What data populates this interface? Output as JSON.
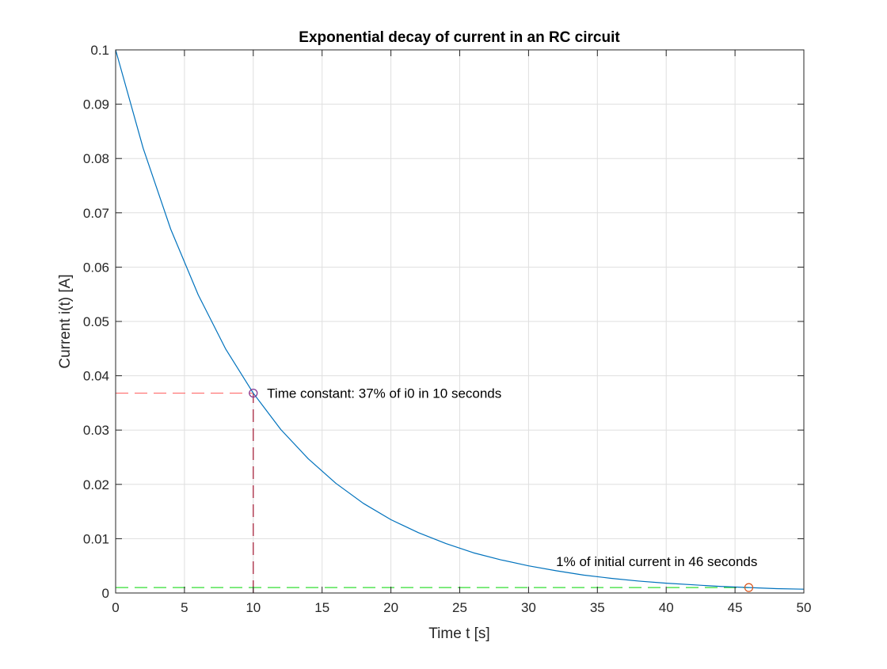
{
  "chart_data": {
    "type": "line",
    "title": "Exponential decay of current in an RC circuit",
    "xlabel": "Time t [s]",
    "ylabel": "Current i(t) [A]",
    "xlim": [
      0,
      50
    ],
    "ylim": [
      0,
      0.1
    ],
    "grid": true,
    "x_ticks": [
      0,
      5,
      10,
      15,
      20,
      25,
      30,
      35,
      40,
      45,
      50
    ],
    "y_ticks": [
      0,
      0.01,
      0.02,
      0.03,
      0.04,
      0.05,
      0.06,
      0.07,
      0.08,
      0.09,
      0.1
    ],
    "x_tick_labels": [
      "0",
      "5",
      "10",
      "15",
      "20",
      "25",
      "30",
      "35",
      "40",
      "45",
      "50"
    ],
    "y_tick_labels": [
      "0",
      "0.01",
      "0.02",
      "0.03",
      "0.04",
      "0.05",
      "0.06",
      "0.07",
      "0.08",
      "0.09",
      "0.1"
    ],
    "series": [
      {
        "color": "#0072BD",
        "x": [
          0,
          2,
          4,
          6,
          8,
          10,
          12,
          14,
          16,
          18,
          20,
          22,
          24,
          26,
          28,
          30,
          32,
          34,
          36,
          38,
          40,
          42,
          44,
          46,
          48,
          50
        ],
        "y": [
          0.1,
          0.0819,
          0.067,
          0.0549,
          0.0449,
          0.0368,
          0.0301,
          0.0247,
          0.0202,
          0.0165,
          0.0135,
          0.0111,
          0.0091,
          0.0074,
          0.0061,
          0.005,
          0.0041,
          0.0033,
          0.0027,
          0.0022,
          0.0018,
          0.0015,
          0.0012,
          0.001,
          0.0008,
          0.0007
        ]
      }
    ],
    "markers": [
      {
        "x": 10,
        "y": 0.0368,
        "color": "#7E2F8E",
        "shape": "circle"
      },
      {
        "x": 46,
        "y": 0.001,
        "color": "#D95319",
        "shape": "circle"
      }
    ],
    "reference_lines": [
      {
        "kind": "horizontal",
        "y": 0.0368,
        "x_from": 0,
        "x_to": 10,
        "color": "#FF6B6B",
        "style": "dashed"
      },
      {
        "kind": "vertical",
        "x": 10,
        "y_from": 0,
        "y_to": 0.0368,
        "color": "#A2142F",
        "style": "dashed"
      },
      {
        "kind": "horizontal",
        "y": 0.001,
        "x_from": 0,
        "x_to": 46,
        "color": "#33DD33",
        "style": "dashed"
      }
    ],
    "annotations": [
      {
        "text": "Time constant: 37% of i0 in 10 seconds",
        "x": 11,
        "y": 0.0368
      },
      {
        "text": "1% of initial current in 46 seconds",
        "x": 32,
        "y": 0.0058
      }
    ]
  }
}
